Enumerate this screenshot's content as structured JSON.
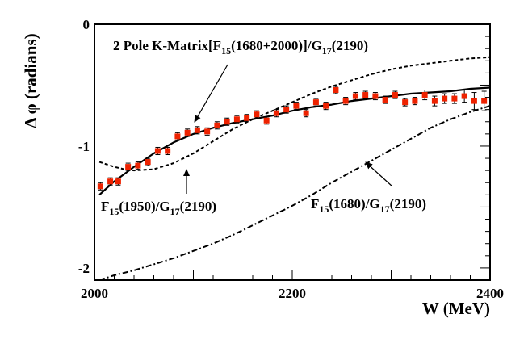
{
  "chart_data": {
    "type": "scatter",
    "title": "",
    "xlabel": "W (MeV)",
    "ylabel": "Δ φ (radians)",
    "xlim": [
      2000,
      2400
    ],
    "ylim": [
      -2.1,
      0
    ],
    "x_ticks": [
      {
        "value": 2000,
        "label": "2000"
      },
      {
        "value": 2200,
        "label": "2200"
      },
      {
        "value": 2400,
        "label": "2400"
      }
    ],
    "y_ticks": [
      {
        "value": 0,
        "label": "0"
      },
      {
        "value": -1,
        "label": "-1"
      },
      {
        "value": -2,
        "label": "-2"
      }
    ],
    "data_points": {
      "name": "data",
      "color": "#ee2200",
      "x": [
        2006,
        2016,
        2024,
        2034,
        2044,
        2054,
        2064,
        2074,
        2084,
        2094,
        2104,
        2114,
        2124,
        2134,
        2144,
        2154,
        2164,
        2174,
        2184,
        2194,
        2204,
        2214,
        2224,
        2234,
        2244,
        2254,
        2264,
        2274,
        2284,
        2294,
        2304,
        2314,
        2324,
        2334,
        2344,
        2354,
        2364,
        2374,
        2384,
        2394
      ],
      "y": [
        -1.33,
        -1.29,
        -1.29,
        -1.17,
        -1.16,
        -1.13,
        -1.04,
        -1.04,
        -0.92,
        -0.89,
        -0.87,
        -0.88,
        -0.83,
        -0.8,
        -0.78,
        -0.77,
        -0.74,
        -0.79,
        -0.73,
        -0.7,
        -0.67,
        -0.73,
        -0.64,
        -0.67,
        -0.54,
        -0.63,
        -0.59,
        -0.58,
        -0.59,
        -0.62,
        -0.58,
        -0.64,
        -0.63,
        -0.58,
        -0.63,
        -0.61,
        -0.61,
        -0.59,
        -0.63,
        -0.63
      ],
      "err": [
        0.03,
        0.03,
        0.03,
        0.03,
        0.03,
        0.03,
        0.03,
        0.03,
        0.03,
        0.03,
        0.03,
        0.03,
        0.03,
        0.03,
        0.03,
        0.03,
        0.03,
        0.03,
        0.03,
        0.03,
        0.03,
        0.03,
        0.03,
        0.03,
        0.03,
        0.03,
        0.03,
        0.03,
        0.03,
        0.03,
        0.03,
        0.03,
        0.03,
        0.04,
        0.04,
        0.04,
        0.04,
        0.05,
        0.07,
        0.08
      ]
    },
    "series": [
      {
        "name": "2 Pole K-Matrix[F15(1680+2000)]/G17(2190)",
        "style": "solid",
        "x": [
          2005,
          2020,
          2040,
          2060,
          2080,
          2100,
          2120,
          2140,
          2160,
          2180,
          2200,
          2220,
          2240,
          2260,
          2280,
          2300,
          2320,
          2340,
          2360,
          2380,
          2400
        ],
        "y": [
          -1.4,
          -1.29,
          -1.17,
          -1.06,
          -0.97,
          -0.9,
          -0.85,
          -0.81,
          -0.78,
          -0.75,
          -0.71,
          -0.68,
          -0.66,
          -0.63,
          -0.61,
          -0.59,
          -0.57,
          -0.56,
          -0.55,
          -0.53,
          -0.52
        ]
      },
      {
        "name": "F15(1950)/G17(2190)",
        "style": "dashed",
        "x": [
          2005,
          2020,
          2030,
          2040,
          2060,
          2080,
          2100,
          2120,
          2140,
          2160,
          2180,
          2200,
          2220,
          2240,
          2260,
          2280,
          2300,
          2320,
          2340,
          2360,
          2380,
          2400
        ],
        "y": [
          -1.13,
          -1.17,
          -1.19,
          -1.2,
          -1.19,
          -1.14,
          -1.06,
          -0.96,
          -0.86,
          -0.78,
          -0.71,
          -0.64,
          -0.57,
          -0.51,
          -0.46,
          -0.41,
          -0.37,
          -0.34,
          -0.32,
          -0.3,
          -0.28,
          -0.27
        ]
      },
      {
        "name": "F15(1680)/G17(2190)",
        "style": "dashdot",
        "x": [
          2005,
          2020,
          2040,
          2060,
          2080,
          2100,
          2120,
          2140,
          2160,
          2180,
          2200,
          2220,
          2240,
          2260,
          2280,
          2300,
          2320,
          2340,
          2360,
          2380,
          2400
        ],
        "y": [
          -2.1,
          -2.06,
          -2.02,
          -1.97,
          -1.92,
          -1.86,
          -1.8,
          -1.73,
          -1.65,
          -1.57,
          -1.49,
          -1.4,
          -1.3,
          -1.21,
          -1.12,
          -1.03,
          -0.94,
          -0.85,
          -0.78,
          -0.72,
          -0.67
        ]
      }
    ],
    "annotations": [
      {
        "key": "kmatrix",
        "parts": [
          {
            "t": "2 Pole K-Matrix[F"
          },
          {
            "t": "15",
            "sub": true
          },
          {
            "t": "(1680+2000)]/G"
          },
          {
            "t": "17",
            "sub": true
          },
          {
            "t": "(2190)"
          }
        ]
      },
      {
        "key": "f1950",
        "parts": [
          {
            "t": "F"
          },
          {
            "t": "15",
            "sub": true
          },
          {
            "t": "(1950)/G"
          },
          {
            "t": "17",
            "sub": true
          },
          {
            "t": "(2190)"
          }
        ]
      },
      {
        "key": "f1680",
        "parts": [
          {
            "t": "F"
          },
          {
            "t": "15",
            "sub": true
          },
          {
            "t": "(1680)/G"
          },
          {
            "t": "17",
            "sub": true
          },
          {
            "t": "(2190)"
          }
        ]
      }
    ]
  }
}
